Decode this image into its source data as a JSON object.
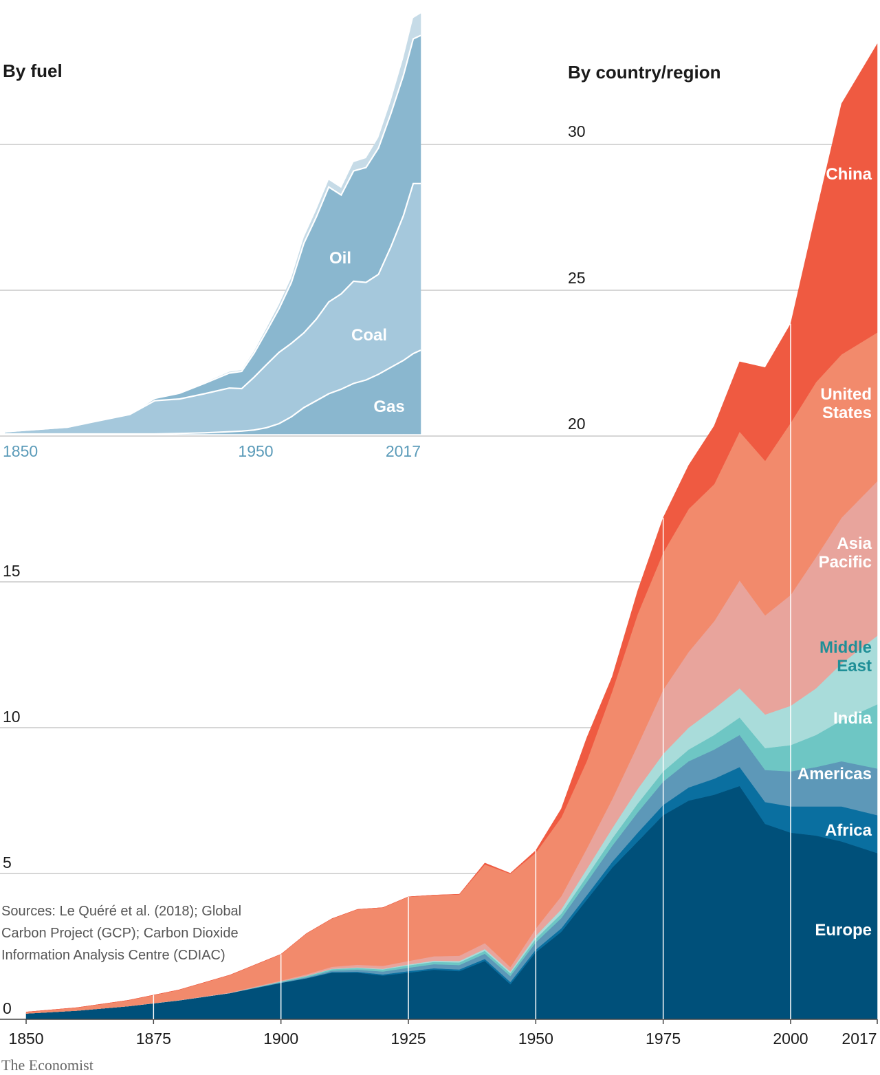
{
  "brand": "The Economist",
  "source_lines": [
    "Sources: Le Quéré et al. (2018); Global",
    "Carbon Project (GCP); Carbon Dioxide",
    "Information Analysis Centre (CDIAC)"
  ],
  "chart_data": [
    {
      "type": "area",
      "title": "By country/region",
      "xlabel": "",
      "ylabel": "",
      "stacked": true,
      "xlim": [
        1850,
        2017
      ],
      "ylim": [
        0,
        33.5
      ],
      "yticks": [
        0,
        5,
        10,
        15,
        20,
        25,
        30
      ],
      "xtick_labels": [
        "1850",
        "1875",
        "1900",
        "1925",
        "1950",
        "1975",
        "2000",
        "2017"
      ],
      "ytick_labels": [
        "0",
        "5",
        "10",
        "15",
        "20",
        "25",
        "30"
      ],
      "grid": true,
      "x": [
        1850,
        1860,
        1870,
        1880,
        1890,
        1900,
        1905,
        1910,
        1915,
        1920,
        1925,
        1930,
        1935,
        1940,
        1945,
        1950,
        1955,
        1960,
        1965,
        1970,
        1975,
        1980,
        1985,
        1990,
        1995,
        2000,
        2005,
        2010,
        2017
      ],
      "series": [
        {
          "name": "Europe",
          "color": "#00507a",
          "values": [
            0.2,
            0.3,
            0.45,
            0.65,
            0.9,
            1.25,
            1.4,
            1.6,
            1.6,
            1.5,
            1.6,
            1.7,
            1.65,
            2.0,
            1.2,
            2.3,
            3.0,
            4.1,
            5.2,
            6.1,
            7.0,
            7.5,
            7.7,
            8.0,
            6.7,
            6.4,
            6.3,
            6.1,
            5.7
          ]
        },
        {
          "name": "Africa",
          "color": "#0a6fa0",
          "values": [
            0,
            0,
            0,
            0,
            0,
            0,
            0.01,
            0.02,
            0.03,
            0.04,
            0.05,
            0.05,
            0.06,
            0.07,
            0.08,
            0.09,
            0.12,
            0.15,
            0.2,
            0.3,
            0.35,
            0.45,
            0.55,
            0.65,
            0.75,
            0.9,
            1.0,
            1.2,
            1.3
          ]
        },
        {
          "name": "Americas",
          "color": "#5d98b8",
          "values": [
            0,
            0,
            0,
            0,
            0,
            0.02,
            0.03,
            0.05,
            0.07,
            0.1,
            0.12,
            0.14,
            0.15,
            0.18,
            0.2,
            0.25,
            0.35,
            0.45,
            0.55,
            0.7,
            0.8,
            0.9,
            1.0,
            1.1,
            1.1,
            1.2,
            1.35,
            1.55,
            1.6
          ]
        },
        {
          "name": "India",
          "color": "#6ec6c4",
          "values": [
            0,
            0,
            0,
            0,
            0,
            0.03,
            0.04,
            0.05,
            0.06,
            0.07,
            0.08,
            0.08,
            0.09,
            0.1,
            0.1,
            0.12,
            0.15,
            0.2,
            0.25,
            0.3,
            0.35,
            0.4,
            0.5,
            0.6,
            0.75,
            0.9,
            1.1,
            1.4,
            2.2
          ]
        },
        {
          "name": "Middle East",
          "color": "#a9dcda",
          "values": [
            0,
            0,
            0,
            0,
            0,
            0,
            0.01,
            0.01,
            0.02,
            0.02,
            0.03,
            0.04,
            0.05,
            0.06,
            0.06,
            0.1,
            0.15,
            0.25,
            0.35,
            0.5,
            0.6,
            0.75,
            0.9,
            1.0,
            1.15,
            1.35,
            1.6,
            1.95,
            2.35
          ]
        },
        {
          "name": "Asia Pacific",
          "color": "#e8a49c",
          "values": [
            0,
            0,
            0,
            0.01,
            0.02,
            0.03,
            0.05,
            0.07,
            0.09,
            0.1,
            0.12,
            0.15,
            0.18,
            0.2,
            0.15,
            0.25,
            0.45,
            0.7,
            1.0,
            1.5,
            2.2,
            2.6,
            3.0,
            3.7,
            3.4,
            3.8,
            4.5,
            5.0,
            5.3
          ]
        },
        {
          "name": "United States",
          "color": "#f28a6c",
          "values": [
            0.05,
            0.1,
            0.2,
            0.35,
            0.6,
            0.9,
            1.4,
            1.65,
            1.9,
            2.0,
            2.2,
            2.1,
            2.1,
            2.7,
            3.2,
            2.6,
            2.7,
            3.0,
            3.7,
            4.5,
            4.7,
            4.9,
            4.7,
            5.1,
            5.3,
            5.9,
            6.0,
            5.6,
            5.1
          ]
        },
        {
          "name": "China",
          "color": "#ef5a41",
          "values": [
            0,
            0,
            0,
            0,
            0,
            0,
            0,
            0,
            0,
            0,
            0,
            0,
            0.01,
            0.05,
            0.02,
            0.08,
            0.3,
            0.8,
            0.5,
            0.8,
            1.2,
            1.5,
            2.0,
            2.4,
            3.2,
            3.4,
            5.8,
            8.6,
            9.9
          ]
        }
      ]
    },
    {
      "type": "area",
      "title": "By fuel",
      "xlabel": "",
      "ylabel": "",
      "stacked": true,
      "xlim": [
        1850,
        2017
      ],
      "ylim": [
        0,
        37
      ],
      "xtick_labels": [
        "1850",
        "1950",
        "2017"
      ],
      "x": [
        1850,
        1875,
        1900,
        1910,
        1920,
        1930,
        1940,
        1945,
        1950,
        1955,
        1960,
        1965,
        1970,
        1975,
        1980,
        1985,
        1990,
        1995,
        2000,
        2005,
        2010,
        2014,
        2017
      ],
      "series": [
        {
          "name": "Gas",
          "color": "#8ab7cf",
          "values": [
            0,
            0,
            0,
            0,
            0.05,
            0.1,
            0.2,
            0.25,
            0.35,
            0.55,
            0.9,
            1.5,
            2.3,
            2.9,
            3.5,
            3.9,
            4.4,
            4.7,
            5.2,
            5.8,
            6.4,
            7.0,
            7.3
          ]
        },
        {
          "name": "Coal",
          "color": "#a5c8dc",
          "values": [
            0.2,
            0.6,
            1.7,
            2.9,
            3.0,
            3.4,
            3.8,
            3.7,
            4.6,
            5.5,
            6.2,
            6.4,
            6.5,
            7.1,
            8.0,
            8.3,
            8.9,
            8.5,
            8.7,
            10.5,
            12.6,
            14.8,
            14.5
          ]
        },
        {
          "name": "Oil",
          "color": "#8ab7cf",
          "values": [
            0,
            0,
            0.05,
            0.2,
            0.5,
            0.9,
            1.3,
            1.5,
            2.1,
            2.9,
            3.8,
            5.3,
            7.8,
            8.9,
            10.0,
            8.6,
            9.6,
            10.0,
            11.0,
            11.6,
            12.2,
            12.6,
            12.9
          ]
        },
        {
          "name": "",
          "color": "#c6dbe7",
          "values": [
            0,
            0,
            0,
            0,
            0,
            0.05,
            0.1,
            0.1,
            0.15,
            0.25,
            0.35,
            0.4,
            0.5,
            0.6,
            0.6,
            0.6,
            0.75,
            0.8,
            0.9,
            1.1,
            1.5,
            1.8,
            1.9
          ]
        }
      ]
    }
  ]
}
